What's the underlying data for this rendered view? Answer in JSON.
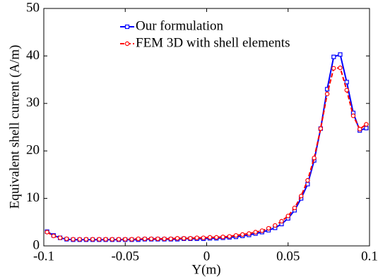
{
  "chart_data": {
    "type": "line",
    "x_label": "Y(m)",
    "y_label": "Equivalent shell current  (A/m)",
    "x": [
      -0.098,
      -0.094,
      -0.09,
      -0.086,
      -0.082,
      -0.078,
      -0.074,
      -0.07,
      -0.066,
      -0.062,
      -0.058,
      -0.054,
      -0.05,
      -0.046,
      -0.042,
      -0.038,
      -0.034,
      -0.03,
      -0.026,
      -0.022,
      -0.018,
      -0.014,
      -0.01,
      -0.006,
      -0.002,
      0.002,
      0.006,
      0.01,
      0.014,
      0.018,
      0.022,
      0.026,
      0.03,
      0.034,
      0.038,
      0.042,
      0.046,
      0.05,
      0.054,
      0.058,
      0.062,
      0.066,
      0.07,
      0.074,
      0.078,
      0.082,
      0.086,
      0.09,
      0.094,
      0.098
    ],
    "series": [
      {
        "name": "Our formulation",
        "color": "#0000ff",
        "marker": "square",
        "dash": false,
        "values": [
          3.0,
          2.2,
          1.7,
          1.4,
          1.3,
          1.3,
          1.3,
          1.3,
          1.3,
          1.3,
          1.3,
          1.3,
          1.3,
          1.3,
          1.3,
          1.4,
          1.4,
          1.4,
          1.4,
          1.4,
          1.4,
          1.5,
          1.5,
          1.5,
          1.5,
          1.6,
          1.6,
          1.7,
          1.8,
          1.9,
          2.1,
          2.3,
          2.6,
          2.9,
          3.3,
          3.8,
          4.6,
          5.8,
          7.5,
          10.0,
          13.0,
          18.0,
          24.7,
          33.0,
          39.8,
          40.3,
          34.5,
          28.0,
          24.3,
          24.8
        ]
      },
      {
        "name": "FEM 3D with shell elements",
        "color": "#ff0000",
        "marker": "circle",
        "dash": true,
        "values": [
          2.9,
          2.1,
          1.7,
          1.5,
          1.4,
          1.4,
          1.4,
          1.4,
          1.4,
          1.4,
          1.4,
          1.4,
          1.4,
          1.4,
          1.5,
          1.5,
          1.5,
          1.5,
          1.5,
          1.5,
          1.6,
          1.6,
          1.6,
          1.7,
          1.7,
          1.8,
          1.8,
          1.9,
          2.0,
          2.2,
          2.4,
          2.6,
          2.9,
          3.2,
          3.7,
          4.3,
          5.2,
          6.3,
          8.0,
          10.5,
          13.8,
          18.5,
          24.7,
          32.0,
          37.4,
          37.5,
          32.8,
          27.4,
          24.6,
          25.6
        ]
      }
    ],
    "xlim": [
      -0.1,
      0.1
    ],
    "xticks": [
      -0.1,
      -0.05,
      0,
      0.05,
      0.1
    ],
    "ylim": [
      0,
      50
    ],
    "yticks": [
      0,
      10,
      20,
      30,
      40,
      50
    ],
    "grid": false,
    "legend": "top"
  }
}
